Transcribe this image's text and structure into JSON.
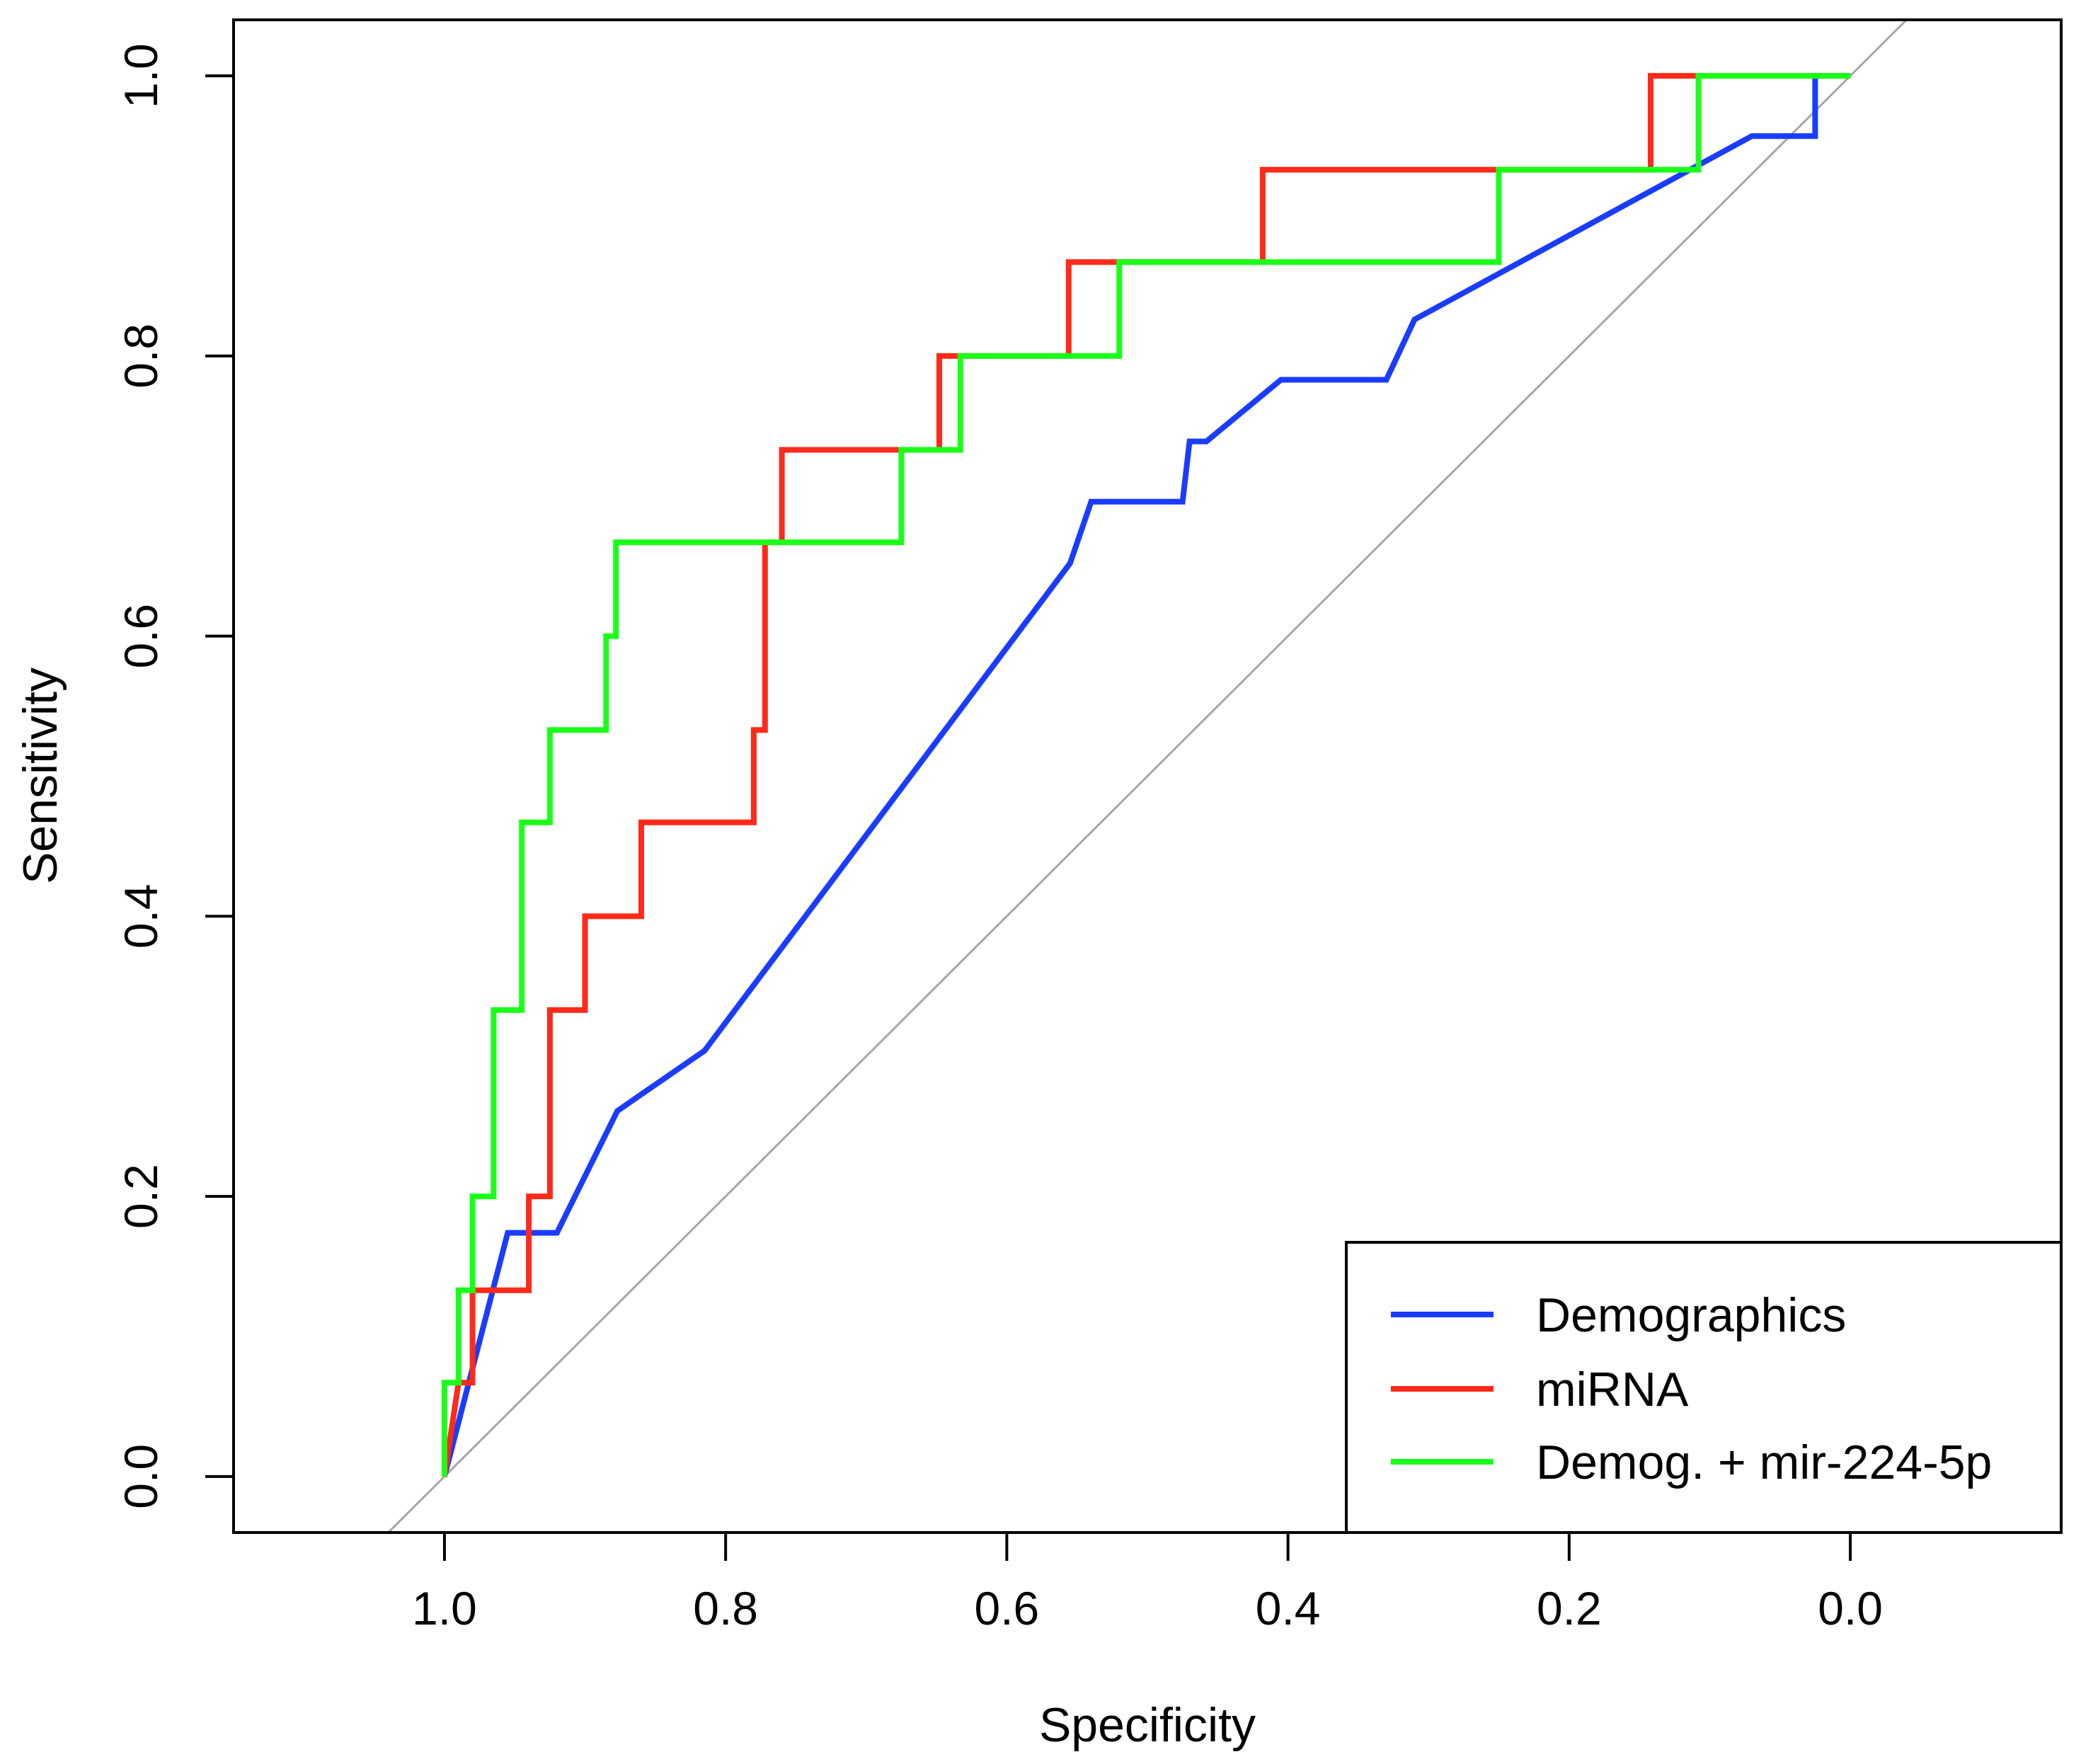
{
  "chart_data": {
    "type": "line",
    "title": "",
    "xlabel": "Specificity",
    "ylabel": "Sensitivity",
    "x_reversed": true,
    "xlim": [
      1.15,
      -0.15
    ],
    "ylim": [
      -0.04,
      1.04
    ],
    "grid": false,
    "legend_position": "bottom-right",
    "xticks": [
      1.0,
      0.8,
      0.6,
      0.4,
      0.2,
      0.0
    ],
    "xtick_labels": [
      "1.0",
      "0.8",
      "0.6",
      "0.4",
      "0.2",
      "0.0"
    ],
    "yticks": [
      0.0,
      0.2,
      0.4,
      0.6,
      0.8,
      1.0
    ],
    "ytick_labels": [
      "0.0",
      "0.2",
      "0.4",
      "0.6",
      "0.8",
      "1.0"
    ],
    "reference_line": {
      "color": "#a6a6a6",
      "points": [
        [
          1.04,
          -0.04
        ],
        [
          -0.04,
          1.04
        ]
      ]
    },
    "series": [
      {
        "name": "Demographics",
        "color": "#1a3cff",
        "points": [
          [
            1.0,
            0.0
          ],
          [
            0.955,
            0.174
          ],
          [
            0.92,
            0.174
          ],
          [
            0.877,
            0.261
          ],
          [
            0.815,
            0.304
          ],
          [
            0.62,
            0.565
          ],
          [
            0.555,
            0.652
          ],
          [
            0.54,
            0.696
          ],
          [
            0.475,
            0.696
          ],
          [
            0.47,
            0.739
          ],
          [
            0.458,
            0.739
          ],
          [
            0.405,
            0.783
          ],
          [
            0.33,
            0.783
          ],
          [
            0.31,
            0.826
          ],
          [
            0.07,
            0.957
          ],
          [
            0.025,
            0.957
          ],
          [
            0.025,
            1.0
          ],
          [
            0.0,
            1.0
          ]
        ]
      },
      {
        "name": "miRNA",
        "color": "#ff2a1a",
        "points": [
          [
            1.0,
            0.0
          ],
          [
            0.99,
            0.067
          ],
          [
            0.98,
            0.067
          ],
          [
            0.98,
            0.133
          ],
          [
            0.94,
            0.133
          ],
          [
            0.94,
            0.2
          ],
          [
            0.925,
            0.2
          ],
          [
            0.925,
            0.333
          ],
          [
            0.9,
            0.333
          ],
          [
            0.9,
            0.4
          ],
          [
            0.86,
            0.4
          ],
          [
            0.86,
            0.467
          ],
          [
            0.78,
            0.467
          ],
          [
            0.78,
            0.533
          ],
          [
            0.772,
            0.533
          ],
          [
            0.772,
            0.667
          ],
          [
            0.76,
            0.667
          ],
          [
            0.76,
            0.733
          ],
          [
            0.648,
            0.733
          ],
          [
            0.648,
            0.8
          ],
          [
            0.556,
            0.8
          ],
          [
            0.556,
            0.867
          ],
          [
            0.418,
            0.867
          ],
          [
            0.418,
            0.933
          ],
          [
            0.142,
            0.933
          ],
          [
            0.142,
            1.0
          ],
          [
            0.0,
            1.0
          ]
        ]
      },
      {
        "name": "Demog. + mir-224-5p",
        "color": "#1aff1a",
        "points": [
          [
            1.0,
            0.0
          ],
          [
            1.0,
            0.067
          ],
          [
            0.99,
            0.067
          ],
          [
            0.99,
            0.133
          ],
          [
            0.98,
            0.133
          ],
          [
            0.98,
            0.2
          ],
          [
            0.965,
            0.2
          ],
          [
            0.965,
            0.333
          ],
          [
            0.945,
            0.333
          ],
          [
            0.945,
            0.467
          ],
          [
            0.925,
            0.467
          ],
          [
            0.925,
            0.533
          ],
          [
            0.885,
            0.533
          ],
          [
            0.885,
            0.6
          ],
          [
            0.878,
            0.6
          ],
          [
            0.878,
            0.667
          ],
          [
            0.675,
            0.667
          ],
          [
            0.675,
            0.733
          ],
          [
            0.633,
            0.733
          ],
          [
            0.633,
            0.8
          ],
          [
            0.52,
            0.8
          ],
          [
            0.52,
            0.867
          ],
          [
            0.25,
            0.867
          ],
          [
            0.25,
            0.933
          ],
          [
            0.108,
            0.933
          ],
          [
            0.108,
            1.0
          ],
          [
            0.0,
            1.0
          ]
        ]
      }
    ]
  }
}
